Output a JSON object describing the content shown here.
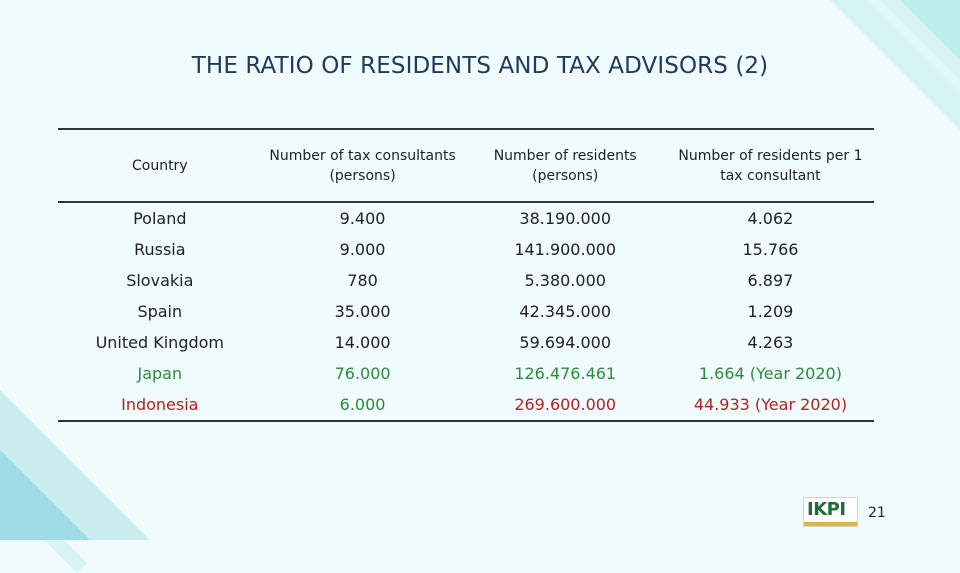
{
  "title": "THE RATIO OF RESIDENTS AND TAX ADVISORS (2)",
  "table": {
    "headers": [
      "Country",
      "Number of tax consultants (persons)",
      "Number of residents (persons)",
      "Number of residents per 1 tax consultant"
    ],
    "rows": [
      {
        "country": "Poland",
        "consultants": "9.400",
        "residents": "38.190.000",
        "ratio": "4.062"
      },
      {
        "country": "Russia",
        "consultants": "9.000",
        "residents": "141.900.000",
        "ratio": "15.766"
      },
      {
        "country": "Slovakia",
        "consultants": "780",
        "residents": "5.380.000",
        "ratio": "6.897"
      },
      {
        "country": "Spain",
        "consultants": "35.000",
        "residents": "42.345.000",
        "ratio": "1.209"
      },
      {
        "country": "United Kingdom",
        "consultants": "14.000",
        "residents": "59.694.000",
        "ratio": "4.263"
      },
      {
        "country": "Japan",
        "consultants": "76.000",
        "residents": "126.476.461",
        "ratio": "1.664 (Year 2020)"
      },
      {
        "country": "Indonesia",
        "consultants": "6.000",
        "residents": "269.600.000",
        "ratio": "44.933 (Year 2020)"
      }
    ]
  },
  "colors": {
    "highlight_green": "#2e8b3c",
    "highlight_red": "#b22222"
  },
  "logo": {
    "text": "IKPI"
  },
  "page_number": "21"
}
